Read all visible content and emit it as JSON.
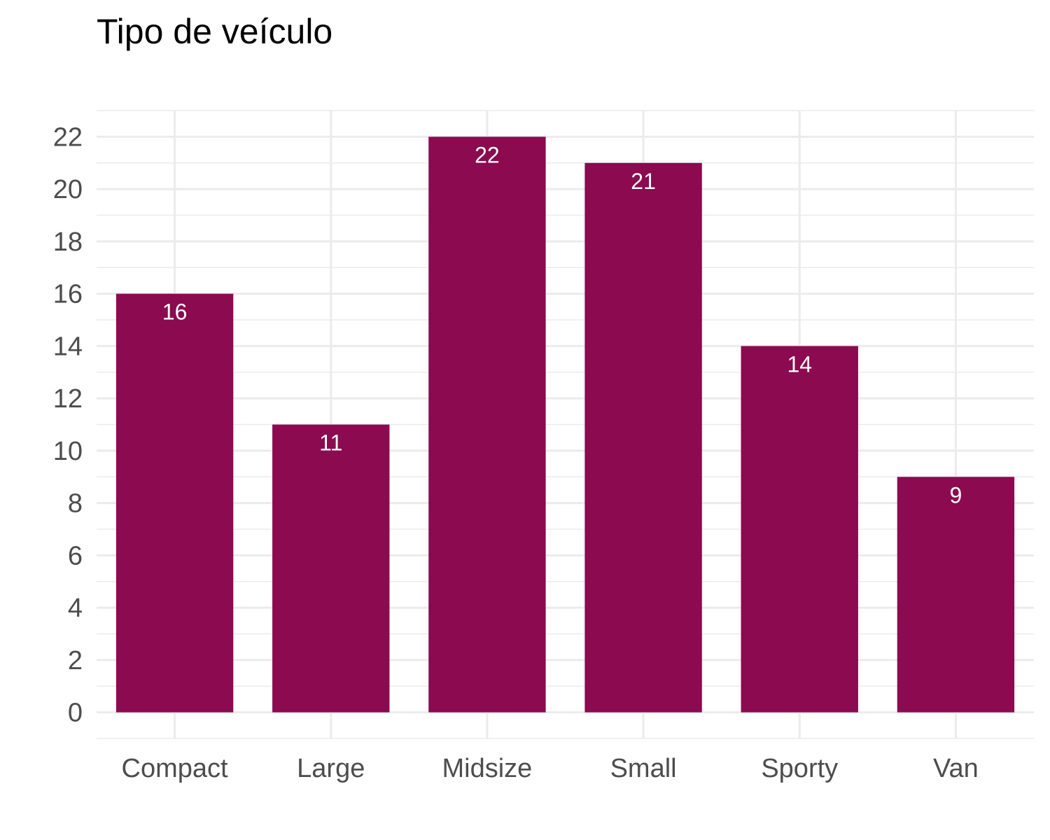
{
  "chart_data": {
    "type": "bar",
    "title": "Tipo de veículo",
    "xlabel": "",
    "ylabel": "",
    "categories": [
      "Compact",
      "Large",
      "Midsize",
      "Small",
      "Sporty",
      "Van"
    ],
    "values": [
      16,
      11,
      22,
      21,
      14,
      9
    ],
    "data_labels": [
      "16",
      "11",
      "22",
      "21",
      "14",
      "9"
    ],
    "ylim": [
      -1,
      23
    ],
    "yticks": [
      0,
      2,
      4,
      6,
      8,
      10,
      12,
      14,
      16,
      18,
      20,
      22
    ],
    "ytick_labels": [
      "0",
      "2",
      "4",
      "6",
      "8",
      "10",
      "12",
      "14",
      "16",
      "18",
      "20",
      "22"
    ],
    "grid": true,
    "legend": "none",
    "bar_color": "#8B0A50",
    "label_color": "#ffffff"
  }
}
